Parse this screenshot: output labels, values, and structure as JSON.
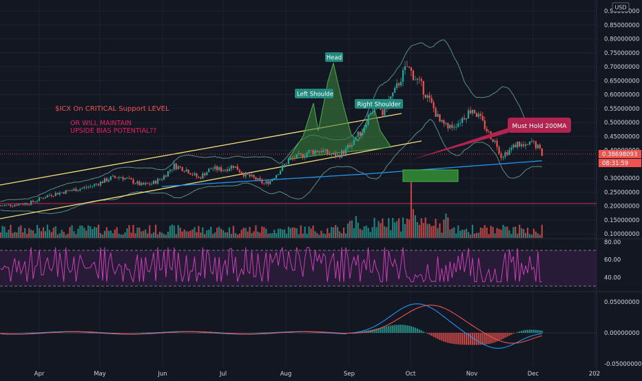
{
  "currency_badge": "USD",
  "colors": {
    "background": "#131722",
    "grid": "#1e2230",
    "axis_text": "#d1d4dc",
    "up": "#26a69a",
    "down": "#ef5350",
    "channel": "#f5e17a",
    "ma200": "#2196f3",
    "bollinger": "#5a8f8a",
    "rsi_line": "#c93fb3",
    "rsi_band": "#3b1f4a",
    "macd_line": "#2196f3",
    "signal_line": "#ef5350",
    "annotation_red": "#ef5350",
    "annotation_pink": "#e91e63",
    "label_teal": "#22897e",
    "callout": "#b0244f",
    "pattern_fill": "#3a7d3a",
    "target_box": "#2e7d32",
    "price_label": "#ef5350"
  },
  "annotations": {
    "title": "$ICX On CRITICAL Support LEVEL",
    "line2": "OR WILL MAINTAIN",
    "line3": "UPSIDE BIAS POTENTIAL??",
    "callout": "Must Hold 200MA"
  },
  "pattern_labels": {
    "left_shoulder": "Left Shoulde",
    "head": "Head",
    "right_shoulder": "Right Shoulder"
  },
  "current_price": {
    "value": "0.38698093",
    "countdown": "08:31:59"
  },
  "price_axis": [
    "0.90000000",
    "0.85000000",
    "0.80000000",
    "0.75000000",
    "0.70000000",
    "0.65000000",
    "0.60000000",
    "0.55000000",
    "0.50000000",
    "0.45000000",
    "0.40000000",
    "0.35000000",
    "0.30000000",
    "0.25000000",
    "0.20000000",
    "0.15000000",
    "0.10000000"
  ],
  "rsi_axis": [
    "80.00",
    "60.00",
    "40.00"
  ],
  "macd_axis": [
    "0.05000000",
    "0.00000000",
    "-0.05000000"
  ],
  "time_axis": [
    "Apr",
    "May",
    "Jun",
    "Jul",
    "Aug",
    "Sep",
    "Oct",
    "Nov",
    "Dec",
    "202"
  ],
  "chart_data": {
    "type": "candlestick",
    "price_ylim": [
      0.085,
      0.915
    ],
    "rsi_ylim": [
      25,
      80
    ],
    "rsi_levels": [
      70,
      30
    ],
    "macd_ylim": [
      -0.05,
      0.06
    ],
    "months": [
      "Apr",
      "May",
      "Jun",
      "Jul",
      "Aug",
      "Sep",
      "Oct",
      "Nov",
      "Dec",
      "202"
    ],
    "support_line": 0.205,
    "target_zone": [
      0.3,
      0.34
    ],
    "price_path": [
      [
        -30,
        0.19
      ],
      [
        -20,
        0.2
      ],
      [
        -5,
        0.21
      ],
      [
        5,
        0.24
      ],
      [
        15,
        0.255
      ],
      [
        25,
        0.27
      ],
      [
        35,
        0.3
      ],
      [
        40,
        0.305
      ],
      [
        45,
        0.29
      ],
      [
        50,
        0.275
      ],
      [
        55,
        0.28
      ],
      [
        60,
        0.3
      ],
      [
        66,
        0.345
      ],
      [
        72,
        0.33
      ],
      [
        78,
        0.3
      ],
      [
        84,
        0.335
      ],
      [
        90,
        0.33
      ],
      [
        95,
        0.345
      ],
      [
        100,
        0.315
      ],
      [
        105,
        0.3
      ],
      [
        110,
        0.28
      ],
      [
        113,
        0.29
      ],
      [
        118,
        0.33
      ],
      [
        122,
        0.365
      ],
      [
        128,
        0.38
      ],
      [
        132,
        0.395
      ],
      [
        138,
        0.4
      ],
      [
        142,
        0.385
      ],
      [
        146,
        0.38
      ],
      [
        150,
        0.4
      ],
      [
        154,
        0.44
      ],
      [
        158,
        0.47
      ],
      [
        162,
        0.54
      ],
      [
        166,
        0.56
      ],
      [
        168,
        0.53
      ],
      [
        172,
        0.59
      ],
      [
        174,
        0.61
      ],
      [
        177,
        0.66
      ],
      [
        180,
        0.7
      ],
      [
        184,
        0.66
      ],
      [
        187,
        0.63
      ],
      [
        190,
        0.59
      ],
      [
        193,
        0.55
      ],
      [
        196,
        0.5
      ],
      [
        200,
        0.48
      ],
      [
        205,
        0.5
      ],
      [
        209,
        0.53
      ],
      [
        212,
        0.55
      ],
      [
        216,
        0.51
      ],
      [
        220,
        0.46
      ],
      [
        224,
        0.42
      ],
      [
        226,
        0.38
      ],
      [
        230,
        0.4
      ],
      [
        234,
        0.425
      ],
      [
        238,
        0.41
      ],
      [
        241,
        0.43
      ],
      [
        244,
        0.41
      ],
      [
        246,
        0.387
      ]
    ]
  }
}
